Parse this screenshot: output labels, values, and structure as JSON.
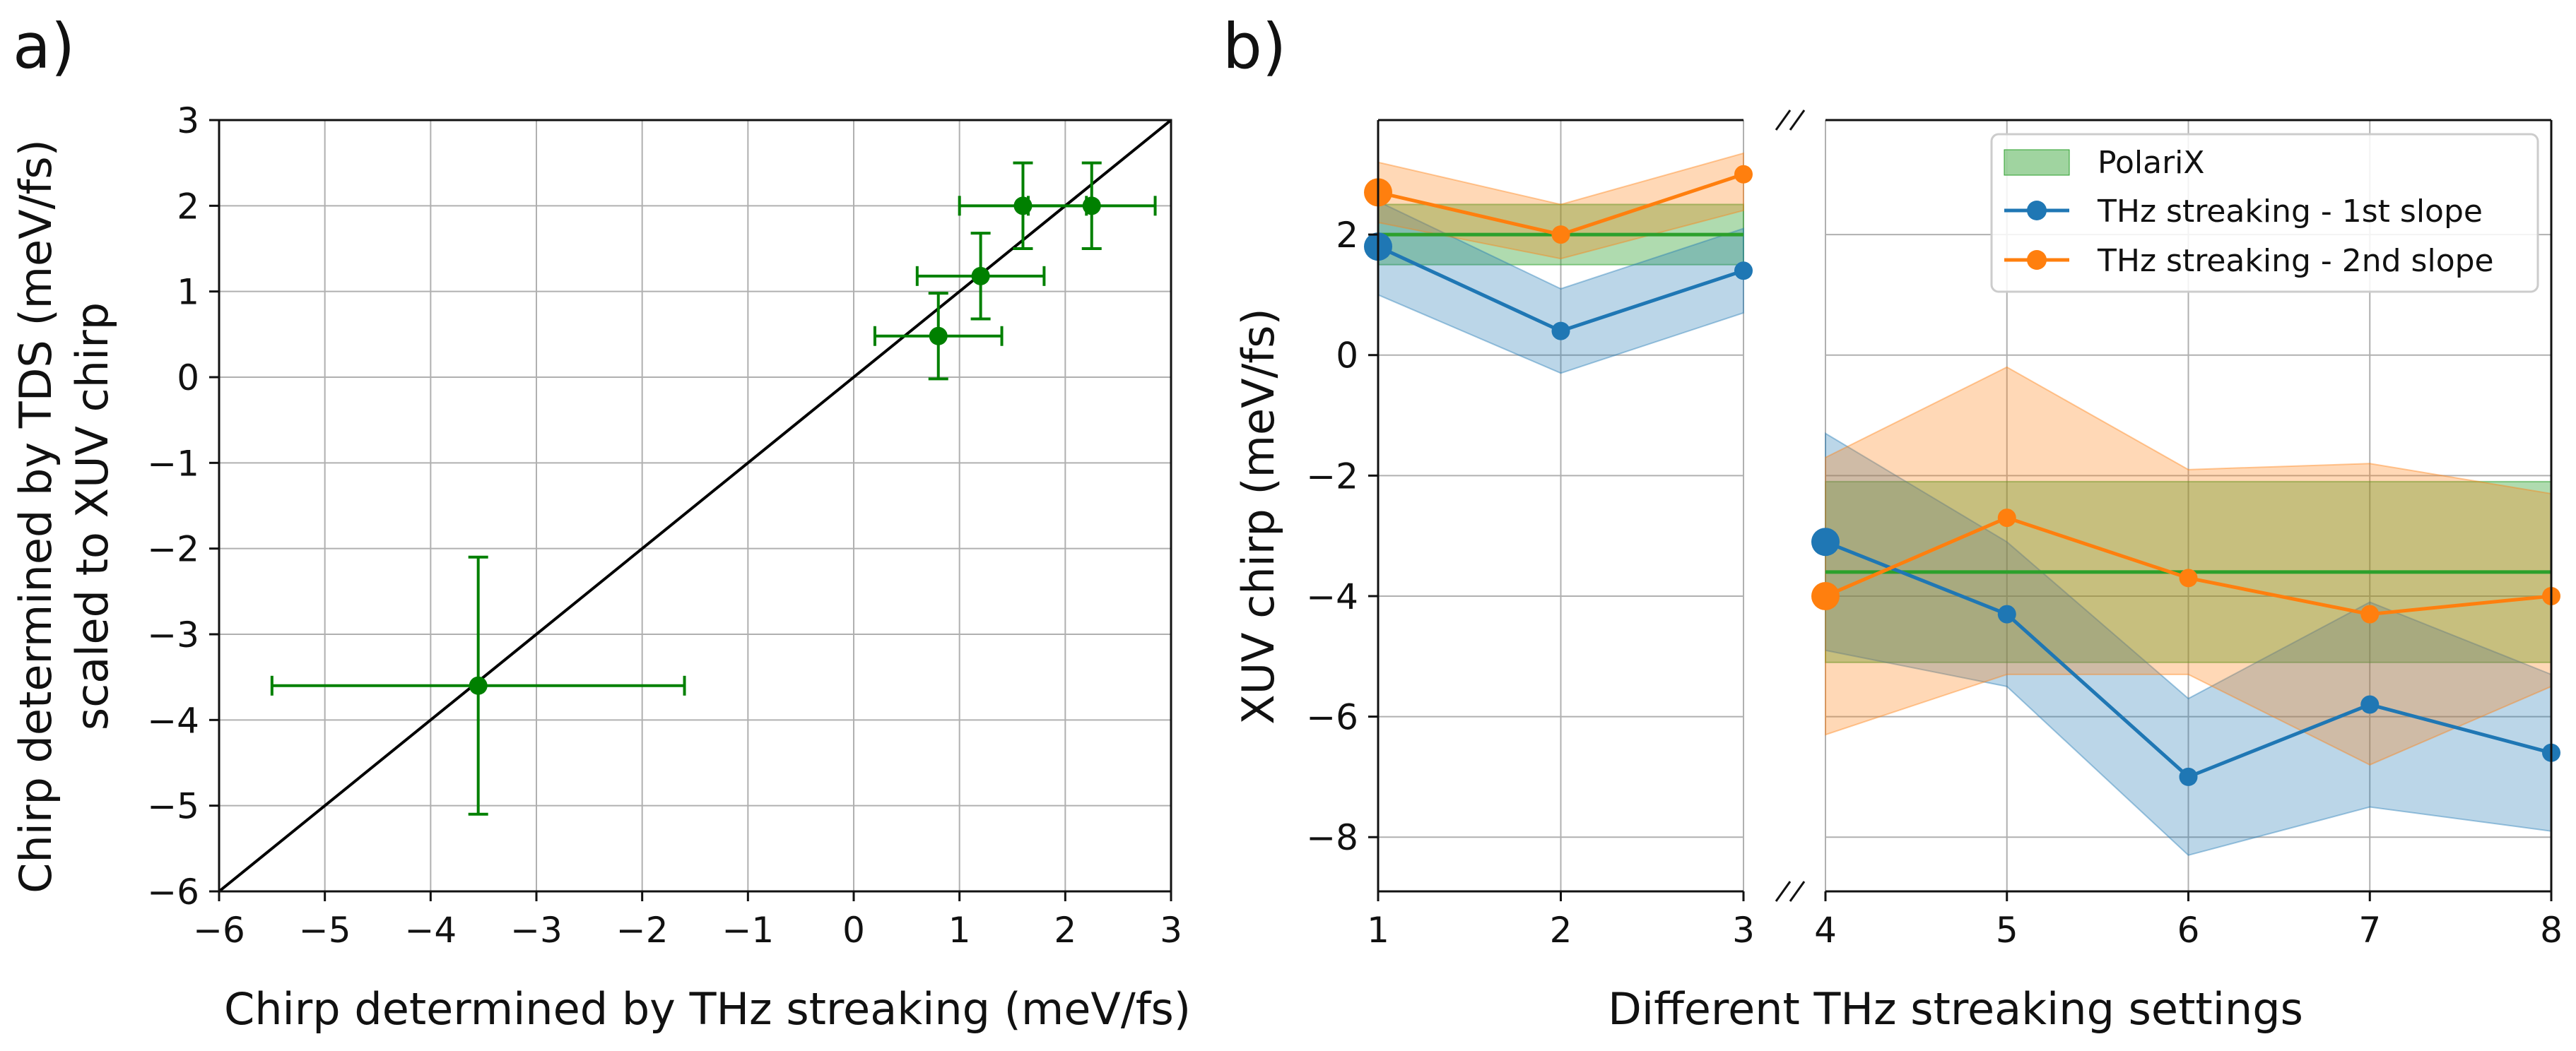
{
  "colors": {
    "green": "#2ca02c",
    "dark_green": "#008000",
    "blue": "#1f77b4",
    "orange": "#ff7f0e",
    "grid": "#b0b0b0",
    "diagonal": "#000000"
  },
  "chart_data": [
    {
      "type": "scatter",
      "panel_label": "a)",
      "xlabel": "Chirp determined by THz streaking (meV/fs)",
      "ylabel_lines": [
        "Chirp determined by TDS (meV/fs)",
        "scaled to XUV chirp"
      ],
      "xlim": [
        -6,
        3
      ],
      "ylim": [
        -6,
        3
      ],
      "xticks": [
        -6,
        -5,
        -4,
        -3,
        -2,
        -1,
        0,
        1,
        2,
        3
      ],
      "yticks": [
        -6,
        -5,
        -4,
        -3,
        -2,
        -1,
        0,
        1,
        2,
        3
      ],
      "grid": true,
      "reference_line": {
        "label": "y = x",
        "from": [
          -6,
          -6
        ],
        "to": [
          3,
          3
        ]
      },
      "points": [
        {
          "x": -3.55,
          "y": -3.6,
          "xerr": 1.95,
          "yerr": 1.5
        },
        {
          "x": 0.8,
          "y": 0.48,
          "xerr": 0.6,
          "yerr": 0.5
        },
        {
          "x": 1.2,
          "y": 1.18,
          "xerr": 0.6,
          "yerr": 0.5
        },
        {
          "x": 1.6,
          "y": 2.0,
          "xerr": 0.6,
          "yerr": 0.5
        },
        {
          "x": 2.25,
          "y": 2.0,
          "xerr": 0.6,
          "yerr": 0.5
        }
      ]
    },
    {
      "type": "line",
      "panel_label": "b)",
      "xlabel": "Different THz streaking settings",
      "ylabel": "XUV chirp (meV/fs)",
      "ylim": [
        -8.9,
        3.9
      ],
      "xticks": [
        1,
        2,
        3,
        4,
        5,
        6,
        7,
        8
      ],
      "yticks": [
        -8,
        -6,
        -4,
        -2,
        0,
        2
      ],
      "grid": true,
      "broken_axis_between": [
        3,
        4
      ],
      "legend": {
        "position": "top-right",
        "entries": [
          "PolariX",
          "THz streaking - 1st slope",
          "THz streaking - 2nd slope"
        ]
      },
      "segments": [
        {
          "x": [
            1,
            2,
            3
          ],
          "polarix": {
            "value": 2.0,
            "band": [
              1.5,
              2.5
            ]
          },
          "series": [
            {
              "name": "THz streaking - 1st slope",
              "values": [
                1.8,
                0.4,
                1.4
              ],
              "lower": [
                1.0,
                -0.3,
                0.7
              ],
              "upper": [
                2.55,
                1.1,
                2.1
              ]
            },
            {
              "name": "THz streaking - 2nd slope",
              "values": [
                2.7,
                2.0,
                3.0
              ],
              "lower": [
                2.2,
                1.6,
                2.4
              ],
              "upper": [
                3.2,
                2.5,
                3.35
              ]
            }
          ]
        },
        {
          "x": [
            4,
            5,
            6,
            7,
            8
          ],
          "polarix": {
            "value": -3.6,
            "band": [
              -5.1,
              -2.1
            ]
          },
          "series": [
            {
              "name": "THz streaking - 1st slope",
              "values": [
                -3.1,
                -4.3,
                -7.0,
                -5.8,
                -6.6
              ],
              "lower": [
                -4.9,
                -5.5,
                -8.3,
                -7.5,
                -7.9
              ],
              "upper": [
                -1.3,
                -3.1,
                -5.7,
                -4.1,
                -5.3
              ]
            },
            {
              "name": "THz streaking - 2nd slope",
              "values": [
                -4.0,
                -2.7,
                -3.7,
                -4.3,
                -4.0
              ],
              "lower": [
                -6.3,
                -5.3,
                -5.3,
                -6.8,
                -5.5
              ],
              "upper": [
                -1.7,
                -0.2,
                -1.9,
                -1.8,
                -2.3
              ]
            }
          ]
        }
      ]
    }
  ]
}
